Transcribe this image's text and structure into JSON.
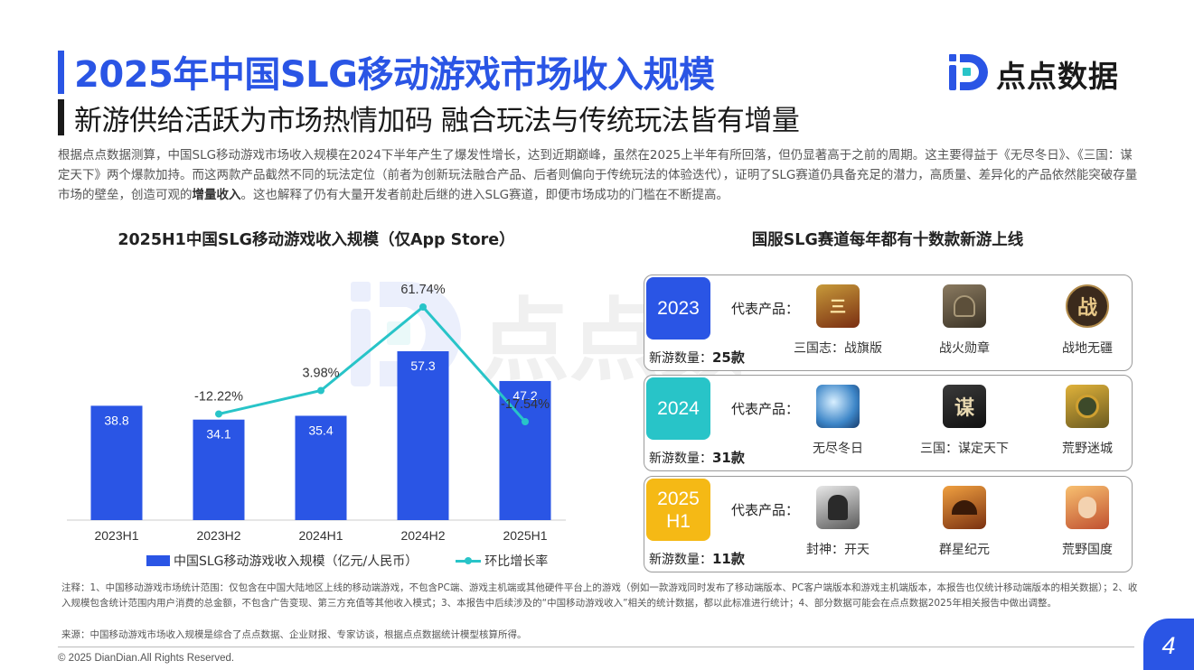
{
  "header": {
    "title": "2025年中国SLG移动游戏市场收入规模",
    "subtitle": "新游供给活跃为市场热情加码 融合玩法与传统玩法皆有增量",
    "logo_text": "点点数据"
  },
  "description": {
    "part1": "根据点点数据测算，中国SLG移动游戏市场收入规模在2024下半年产生了爆发性增长，达到近期巅峰，虽然在2025上半年有所回落，但仍显著高于之前的周期。这主要得益于《无尽冬日》、《三国：谋定天下》两个爆款加持。而这两款产品截然不同的玩法定位（前者为创新玩法融合产品、后者则偏向于传统玩法的体验迭代），证明了SLG赛道仍具备充足的潜力，高质量、差异化的产品依然能突破存量市场的壁垒，创造可观的",
    "highlight": "增量收入",
    "part2": "。这也解释了仍有大量开发者前赴后继的进入SLG赛道，即便市场成功的门槛在不断提高。"
  },
  "chart_data": {
    "type": "bar",
    "title": "2025H1中国SLG移动游戏收入规模（仅App Store）",
    "categories": [
      "2023H1",
      "2023H2",
      "2024H1",
      "2024H2",
      "2025H1"
    ],
    "series": [
      {
        "name": "中国SLG移动游戏收入规模（亿元/人民币）",
        "type": "bar",
        "values": [
          38.8,
          34.1,
          35.4,
          57.3,
          47.2
        ],
        "color": "#2a55e5"
      },
      {
        "name": "环比增长率",
        "type": "line",
        "values": [
          null,
          -12.22,
          3.98,
          61.74,
          -17.54
        ],
        "labels": [
          "",
          "-12.22%",
          "3.98%",
          "61.74%",
          "-17.54%"
        ],
        "color": "#28c4c8"
      }
    ]
  },
  "right_panel": {
    "title": "国服SLG赛道每年都有十数款新游上线",
    "rep_label": "代表产品：",
    "count_prefix": "新游数量：",
    "years": [
      {
        "year": "2023",
        "color": "#2a55e5",
        "count": "25款",
        "games": [
          {
            "name": "三国志：战旗版",
            "icon": "three-kingdoms-flag-icon"
          },
          {
            "name": "战火勋章",
            "icon": "soldier-icon"
          },
          {
            "name": "战地无疆",
            "icon": "war-glyph-icon"
          }
        ]
      },
      {
        "year": "2024",
        "color": "#28c4c8",
        "count": "31款",
        "games": [
          {
            "name": "无尽冬日",
            "icon": "frozen-globe-icon"
          },
          {
            "name": "三国：谋定天下",
            "icon": "strategy-glyph-icon"
          },
          {
            "name": "荒野迷城",
            "icon": "hazmat-soldier-icon"
          }
        ]
      },
      {
        "year": "2025\nH1",
        "color": "#f5b915",
        "count": "11款",
        "games": [
          {
            "name": "封神：开天",
            "icon": "warrior-icon"
          },
          {
            "name": "群星纪元",
            "icon": "dragon-icon"
          },
          {
            "name": "荒野国度",
            "icon": "heroine-icon"
          }
        ]
      }
    ]
  },
  "footer": {
    "notes": "注释：1、中国移动游戏市场统计范围：仅包含在中国大陆地区上线的移动端游戏，不包含PC端、游戏主机端或其他硬件平台上的游戏（例如一款游戏同时发布了移动端版本、PC客户端版本和游戏主机端版本，本报告也仅统计移动端版本的相关数据）；2、收入规模包含统计范围内用户消费的总金额，不包含广告变现、第三方充值等其他收入模式；3、本报告中后续涉及的“中国移动游戏收入”相关的统计数据，都以此标准进行统计；4、部分数据可能会在点点数据2025年相关报告中做出调整。",
    "source": "来源：中国移动游戏市场收入规模是综合了点点数据、企业财报、专家访谈，根据点点数据统计模型核算所得。",
    "copyright": "© 2025 DianDian.All Rights Reserved.",
    "page": "4"
  }
}
